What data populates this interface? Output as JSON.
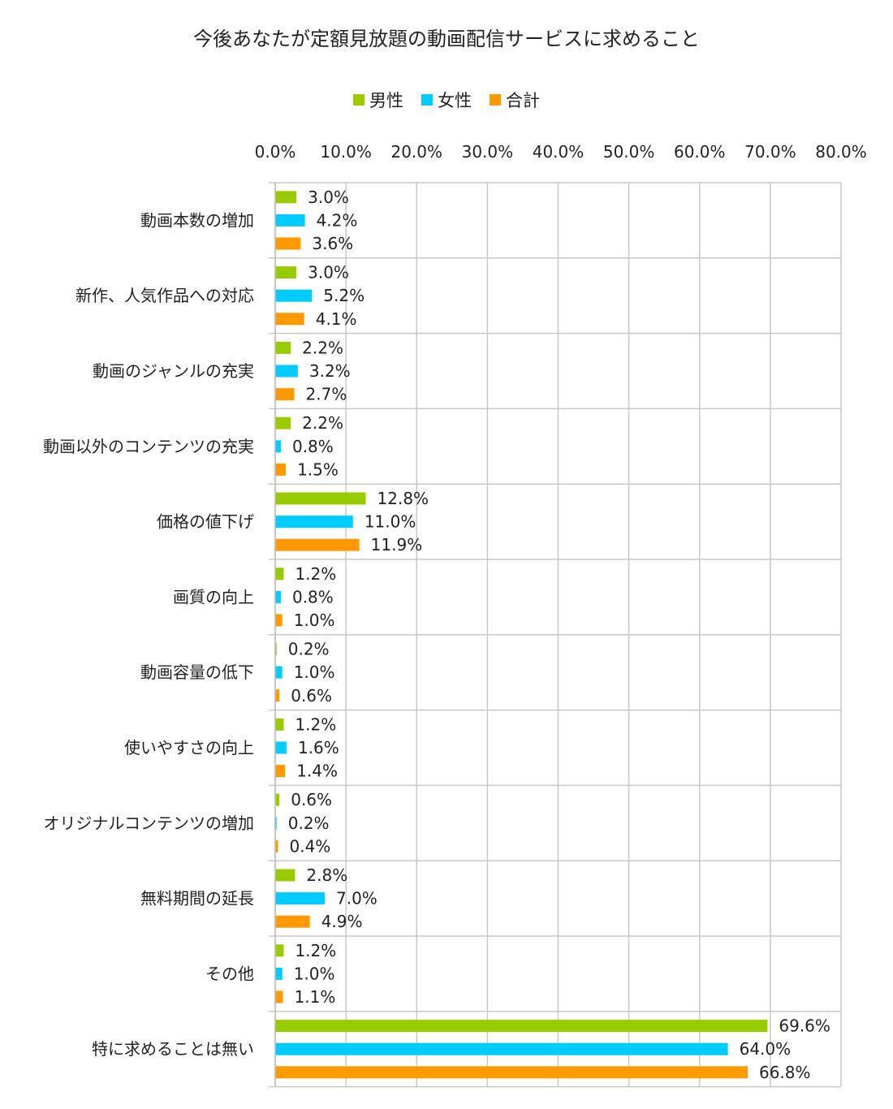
{
  "chart_data": {
    "type": "bar",
    "orientation": "horizontal",
    "title": "今後あなたが定額見放題の動画配信サービスに求めること",
    "xlim": [
      0,
      80
    ],
    "xticks": [
      "0.0%",
      "10.0%",
      "20.0%",
      "30.0%",
      "40.0%",
      "50.0%",
      "60.0%",
      "70.0%",
      "80.0%"
    ],
    "grid": true,
    "legend_position": "top",
    "categories": [
      "動画本数の増加",
      "新作、人気作品への対応",
      "動画のジャンルの充実",
      "動画以外のコンテンツの充実",
      "価格の値下げ",
      "画質の向上",
      "動画容量の低下",
      "使いやすさの向上",
      "オリジナルコンテンツの増加",
      "無料期間の延長",
      "その他",
      "特に求めることは無い"
    ],
    "series": [
      {
        "name": "男性",
        "color": "#99cc00",
        "values": [
          3.0,
          3.0,
          2.2,
          2.2,
          12.8,
          1.2,
          0.2,
          1.2,
          0.6,
          2.8,
          1.2,
          69.6
        ],
        "labels": [
          "3.0%",
          "3.0%",
          "2.2%",
          "2.2%",
          "12.8%",
          "1.2%",
          "0.2%",
          "1.2%",
          "0.6%",
          "2.8%",
          "1.2%",
          "69.6%"
        ]
      },
      {
        "name": "女性",
        "color": "#00ccff",
        "values": [
          4.2,
          5.2,
          3.2,
          0.8,
          11.0,
          0.8,
          1.0,
          1.6,
          0.2,
          7.0,
          1.0,
          64.0
        ],
        "labels": [
          "4.2%",
          "5.2%",
          "3.2%",
          "0.8%",
          "11.0%",
          "0.8%",
          "1.0%",
          "1.6%",
          "0.2%",
          "7.0%",
          "1.0%",
          "64.0%"
        ]
      },
      {
        "name": "合計",
        "color": "#ff9900",
        "values": [
          3.6,
          4.1,
          2.7,
          1.5,
          11.9,
          1.0,
          0.6,
          1.4,
          0.4,
          4.9,
          1.1,
          66.8
        ],
        "labels": [
          "3.6%",
          "4.1%",
          "2.7%",
          "1.5%",
          "11.9%",
          "1.0%",
          "0.6%",
          "1.4%",
          "0.4%",
          "4.9%",
          "1.1%",
          "66.8%"
        ]
      }
    ]
  }
}
